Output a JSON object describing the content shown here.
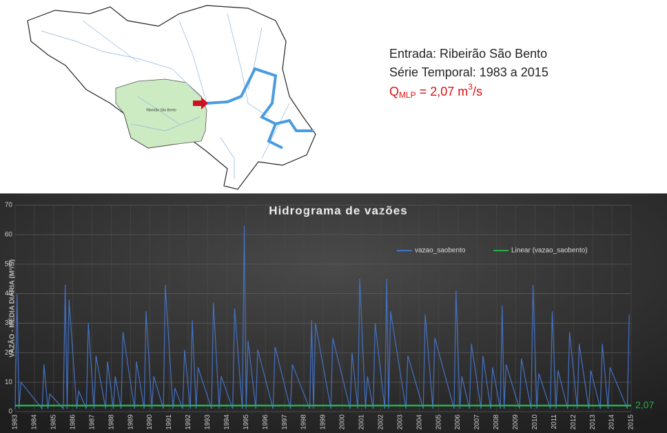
{
  "map": {
    "label": "Ribeirão São Bento"
  },
  "info": {
    "lines": [
      "Entrada: Ribeirão São Bento",
      "Série Temporal: 1983 a 2015"
    ],
    "q": {
      "main": "Q",
      "sub": "MLP",
      "mid": " = 2,07 m",
      "sup": "3",
      "end": "/s"
    }
  },
  "chart_data": {
    "type": "line",
    "title": "Hidrograma de vazões",
    "ylabel": "VAZÃO - MÉDIA DIÁRIA (M³/S)",
    "xlim": [
      1983,
      2015
    ],
    "xticks": [
      1983,
      1984,
      1985,
      1986,
      1987,
      1988,
      1989,
      1990,
      1991,
      1992,
      1993,
      1994,
      1995,
      1996,
      1997,
      1998,
      1999,
      2000,
      2001,
      2002,
      2003,
      2004,
      2005,
      2006,
      2007,
      2008,
      2009,
      2010,
      2011,
      2012,
      2013,
      2014,
      2015
    ],
    "ylim": [
      0,
      70
    ],
    "yticks": [
      0,
      10,
      20,
      30,
      40,
      50,
      60,
      70
    ],
    "grid": true,
    "legend": "top-right",
    "series": [
      {
        "name": "vazao_saobento",
        "color": "#4472c4",
        "x": [
          1983.0,
          1983.1,
          1983.2,
          1983.3,
          1984.4,
          1984.5,
          1984.7,
          1984.8,
          1985.5,
          1985.6,
          1985.7,
          1985.8,
          1986.2,
          1986.3,
          1986.7,
          1986.8,
          1987.1,
          1987.2,
          1987.7,
          1987.8,
          1988.1,
          1988.2,
          1988.5,
          1988.6,
          1989.2,
          1989.3,
          1989.7,
          1989.8,
          1990.1,
          1990.2,
          1990.7,
          1990.8,
          1991.2,
          1991.3,
          1991.7,
          1991.8,
          1992.1,
          1992.2,
          1992.4,
          1992.5,
          1993.2,
          1993.3,
          1993.6,
          1993.7,
          1994.3,
          1994.4,
          1994.8,
          1994.9,
          1995.0,
          1995.1,
          1995.5,
          1995.6,
          1996.4,
          1996.5,
          1997.3,
          1997.4,
          1998.3,
          1998.4,
          1998.5,
          1998.6,
          1999.4,
          1999.5,
          2000.4,
          2000.5,
          2000.8,
          2000.9,
          2001.2,
          2001.3,
          2001.6,
          2001.7,
          2002.2,
          2002.3,
          2002.4,
          2002.5,
          2003.3,
          2003.4,
          2004.2,
          2004.3,
          2004.7,
          2004.8,
          2005.8,
          2005.9,
          2006.1,
          2006.2,
          2006.6,
          2006.7,
          2007.2,
          2007.3,
          2007.7,
          2007.8,
          2008.2,
          2008.3,
          2008.4,
          2008.5,
          2009.2,
          2009.3,
          2009.8,
          2009.9,
          2010.1,
          2010.2,
          2010.8,
          2010.9,
          2011.1,
          2011.2,
          2011.7,
          2011.8,
          2012.2,
          2012.3,
          2012.8,
          2012.9,
          2013.4,
          2013.5,
          2013.8,
          2013.9,
          2014.8,
          2014.9
        ],
        "values": [
          1,
          40,
          1,
          10,
          1,
          16,
          1,
          6,
          1,
          43,
          1,
          38,
          1,
          7,
          1,
          30,
          1,
          19,
          1,
          17,
          1,
          12,
          1,
          27,
          1,
          17,
          1,
          34,
          1,
          12,
          1,
          43,
          1,
          8,
          1,
          21,
          1,
          31,
          1,
          15,
          1,
          37,
          1,
          12,
          1,
          35,
          1,
          63,
          1,
          24,
          1,
          21,
          1,
          22,
          1,
          16,
          1,
          31,
          1,
          30,
          1,
          25,
          1,
          20,
          1,
          45,
          1,
          12,
          1,
          30,
          1,
          45,
          1,
          34,
          1,
          19,
          1,
          33,
          1,
          25,
          1,
          41,
          1,
          12,
          1,
          23,
          1,
          19,
          1,
          15,
          1,
          36,
          1,
          16,
          1,
          18,
          1,
          43,
          1,
          13,
          1,
          34,
          1,
          14,
          1,
          27,
          1,
          23,
          1,
          14,
          1,
          23,
          1,
          15,
          1,
          33
        ]
      },
      {
        "name": "Linear (vazao_saobento)",
        "color": "#22b14c",
        "x": [
          1983,
          2015
        ],
        "values": [
          2.07,
          2.07
        ]
      }
    ],
    "annotation": {
      "text": "2,07",
      "value": 2.07,
      "color": "#22b14c"
    }
  }
}
